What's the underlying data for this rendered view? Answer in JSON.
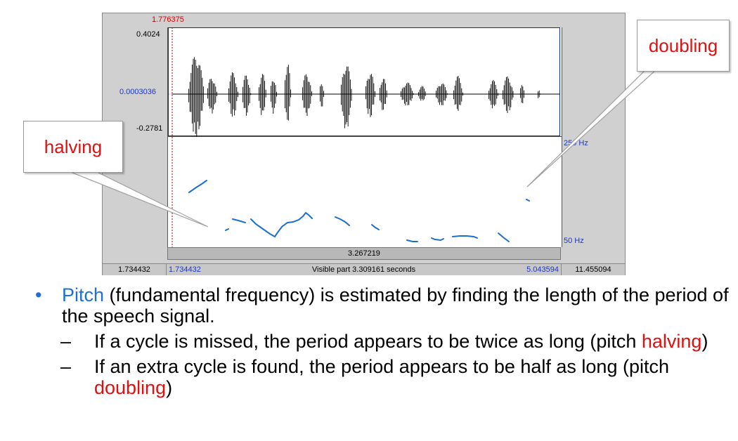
{
  "praat": {
    "cursor_time": "1.776375",
    "amp_max": "0.4024",
    "amp_zero": "0.0003036",
    "amp_min": "-0.2781",
    "pitch_max_label": "250 Hz",
    "pitch_min_label": "50 Hz",
    "selection_duration": "3.267219",
    "bar_left_time": "1.734432",
    "bar_visible_start": "1.734432",
    "bar_visible_text": "Visible part 3.309161 seconds",
    "bar_visible_end": "5.043594",
    "bar_total_end": "11.455094"
  },
  "callouts": {
    "halving": "halving",
    "doubling": "doubling"
  },
  "bullets": {
    "main_highlight": "Pitch",
    "main_text": " (fundamental frequency) is estimated by finding the length of the period of the speech signal.",
    "sub1_pre": "If a cycle is missed, the period appears to be twice as long (pitch ",
    "sub1_word": "halving",
    "sub1_post": ")",
    "sub2_pre": "If an extra cycle is found, the period appears to be half as long (pitch ",
    "sub2_word": "doubling",
    "sub2_post": ")"
  },
  "colors": {
    "accent": "#1f6fd6",
    "callout_text": "#e01010",
    "pitch_line": "#1a6fd0"
  }
}
